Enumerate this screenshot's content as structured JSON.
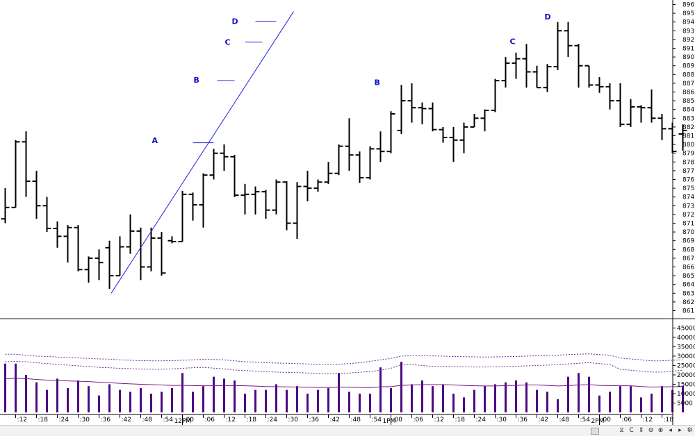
{
  "chart_data": [
    {
      "type": "ohlc",
      "title": "",
      "interval_minutes": 3,
      "ylim": [
        860,
        896.5
      ],
      "y_ticks": [
        861,
        862,
        863,
        864,
        865,
        866,
        867,
        868,
        869,
        870,
        871,
        872,
        873,
        874,
        875,
        876,
        877,
        878,
        879,
        880,
        881,
        882,
        883,
        884,
        885,
        886,
        887,
        888,
        889,
        890,
        891,
        892,
        893,
        894,
        895,
        896
      ],
      "bars": [
        {
          "t": "11:09",
          "o": 871.5,
          "h": 875,
          "l": 871,
          "c": 872.8
        },
        {
          "t": "11:12",
          "o": 872.8,
          "h": 880.5,
          "l": 872.8,
          "c": 880.3
        },
        {
          "t": "11:15",
          "o": 880.3,
          "h": 881.5,
          "l": 874,
          "c": 875.8
        },
        {
          "t": "11:18",
          "o": 875.8,
          "h": 877,
          "l": 871.5,
          "c": 873
        },
        {
          "t": "11:21",
          "o": 873,
          "h": 874,
          "l": 870,
          "c": 870.4
        },
        {
          "t": "11:24",
          "o": 870.4,
          "h": 871.2,
          "l": 868.2,
          "c": 869.5
        },
        {
          "t": "11:27",
          "o": 869.5,
          "h": 870.8,
          "l": 866.5,
          "c": 870.5
        },
        {
          "t": "11:30",
          "o": 870.5,
          "h": 870.8,
          "l": 865.5,
          "c": 865.7
        },
        {
          "t": "11:33",
          "o": 865.7,
          "h": 867.2,
          "l": 864.2,
          "c": 867
        },
        {
          "t": "11:36",
          "o": 867,
          "h": 868,
          "l": 864.5,
          "c": 866.5
        },
        {
          "t": "11:39",
          "o": 868.2,
          "h": 869,
          "l": 863.5,
          "c": 865
        },
        {
          "t": "11:42",
          "o": 865,
          "h": 869.5,
          "l": 865,
          "c": 868.3
        },
        {
          "t": "11:45",
          "o": 868.3,
          "h": 872,
          "l": 867.5,
          "c": 870.1
        },
        {
          "t": "11:48",
          "o": 870.1,
          "h": 870.5,
          "l": 864.5,
          "c": 866
        },
        {
          "t": "11:51",
          "o": 866,
          "h": 870.5,
          "l": 865.5,
          "c": 869.3
        },
        {
          "t": "11:54",
          "o": 869.3,
          "h": 870,
          "l": 865,
          "c": 865.3
        },
        {
          "t": "11:57",
          "o": 869,
          "h": 869.5,
          "l": 868.7,
          "c": 868.9
        },
        {
          "t": "12:00",
          "o": 868.9,
          "h": 874.7,
          "l": 868.9,
          "c": 874.3
        },
        {
          "t": "12:03",
          "o": 874.3,
          "h": 874.5,
          "l": 871.3,
          "c": 873.1
        },
        {
          "t": "12:06",
          "o": 873.1,
          "h": 876.7,
          "l": 870.5,
          "c": 876.5
        },
        {
          "t": "12:09",
          "o": 876.5,
          "h": 879.5,
          "l": 876,
          "c": 879
        },
        {
          "t": "12:12",
          "o": 879,
          "h": 880,
          "l": 877,
          "c": 878.6
        },
        {
          "t": "12:15",
          "o": 878.6,
          "h": 878.8,
          "l": 874,
          "c": 874.2
        },
        {
          "t": "12:18",
          "o": 874.2,
          "h": 875.5,
          "l": 872,
          "c": 874.3
        },
        {
          "t": "12:21",
          "o": 874.3,
          "h": 875.2,
          "l": 872,
          "c": 874.6
        },
        {
          "t": "12:24",
          "o": 874.6,
          "h": 874.8,
          "l": 871.5,
          "c": 872.5
        },
        {
          "t": "12:27",
          "o": 872.5,
          "h": 876,
          "l": 872,
          "c": 875.7
        },
        {
          "t": "12:30",
          "o": 875.7,
          "h": 875.8,
          "l": 870.2,
          "c": 871
        },
        {
          "t": "12:33",
          "o": 871,
          "h": 875.7,
          "l": 869.2,
          "c": 875.2
        },
        {
          "t": "12:36",
          "o": 875.2,
          "h": 877,
          "l": 873.5,
          "c": 875
        },
        {
          "t": "12:39",
          "o": 875,
          "h": 876,
          "l": 874.6,
          "c": 875.7
        },
        {
          "t": "12:42",
          "o": 875.7,
          "h": 878,
          "l": 875.5,
          "c": 876.7
        },
        {
          "t": "12:45",
          "o": 876.7,
          "h": 880,
          "l": 876.5,
          "c": 879.8
        },
        {
          "t": "12:48",
          "o": 879.8,
          "h": 883,
          "l": 877,
          "c": 878.8
        },
        {
          "t": "12:51",
          "o": 878.8,
          "h": 879.2,
          "l": 875.6,
          "c": 876.2
        },
        {
          "t": "12:54",
          "o": 876.2,
          "h": 879.8,
          "l": 876,
          "c": 879.5
        },
        {
          "t": "12:57",
          "o": 879.5,
          "h": 881.5,
          "l": 878,
          "c": 879.2
        },
        {
          "t": "13:00",
          "o": 879.2,
          "h": 883.8,
          "l": 879,
          "c": 883.5
        },
        {
          "t": "13:03",
          "o": 881.6,
          "h": 886.8,
          "l": 881.2,
          "c": 885
        },
        {
          "t": "13:06",
          "o": 885,
          "h": 887,
          "l": 882.5,
          "c": 884.2
        },
        {
          "t": "13:09",
          "o": 884.2,
          "h": 884.8,
          "l": 882.3,
          "c": 884.1
        },
        {
          "t": "13:12",
          "o": 884.1,
          "h": 884.8,
          "l": 881.5,
          "c": 881.7
        },
        {
          "t": "13:15",
          "o": 881.7,
          "h": 882,
          "l": 880.2,
          "c": 880.8
        },
        {
          "t": "13:18",
          "o": 880.8,
          "h": 882,
          "l": 878,
          "c": 880.5
        },
        {
          "t": "13:21",
          "o": 880.5,
          "h": 882.5,
          "l": 879,
          "c": 882
        },
        {
          "t": "13:24",
          "o": 882,
          "h": 883.5,
          "l": 882,
          "c": 883
        },
        {
          "t": "13:27",
          "o": 883,
          "h": 884,
          "l": 881.5,
          "c": 883.9
        },
        {
          "t": "13:30",
          "o": 883.9,
          "h": 887.5,
          "l": 883.7,
          "c": 887.3
        },
        {
          "t": "13:33",
          "o": 887.3,
          "h": 890,
          "l": 886.5,
          "c": 889.3
        },
        {
          "t": "13:36",
          "o": 889.3,
          "h": 890.5,
          "l": 887.5,
          "c": 889.8
        },
        {
          "t": "13:39",
          "o": 889.8,
          "h": 891.5,
          "l": 886.5,
          "c": 888.3
        },
        {
          "t": "13:42",
          "o": 888.3,
          "h": 889,
          "l": 886.5,
          "c": 886.5
        },
        {
          "t": "13:45",
          "o": 886.5,
          "h": 889.2,
          "l": 886,
          "c": 888.9
        },
        {
          "t": "13:48",
          "o": 888.9,
          "h": 894,
          "l": 888.5,
          "c": 893
        },
        {
          "t": "13:51",
          "o": 893,
          "h": 894,
          "l": 890,
          "c": 891.3
        },
        {
          "t": "13:54",
          "o": 891.3,
          "h": 891.5,
          "l": 886.5,
          "c": 889
        },
        {
          "t": "13:57",
          "o": 889,
          "h": 889,
          "l": 886.5,
          "c": 886.8
        },
        {
          "t": "14:00",
          "o": 886.8,
          "h": 887.7,
          "l": 885.9,
          "c": 886.6
        },
        {
          "t": "14:03",
          "o": 886.6,
          "h": 887,
          "l": 884,
          "c": 885
        },
        {
          "t": "14:06",
          "o": 885,
          "h": 887,
          "l": 882,
          "c": 882.3
        },
        {
          "t": "14:09",
          "o": 882.3,
          "h": 885.2,
          "l": 882,
          "c": 884.3
        },
        {
          "t": "14:12",
          "o": 884.3,
          "h": 884.5,
          "l": 882.5,
          "c": 884.2
        },
        {
          "t": "14:15",
          "o": 884.2,
          "h": 886.3,
          "l": 882.5,
          "c": 883
        },
        {
          "t": "14:18",
          "o": 883,
          "h": 883.5,
          "l": 880.5,
          "c": 881.8
        },
        {
          "t": "14:21",
          "o": 881.8,
          "h": 882.5,
          "l": 879,
          "c": 879.2
        },
        {
          "t": "14:24",
          "o": 881.2,
          "h": 882.3,
          "l": 879.3,
          "c": 881.6
        }
      ],
      "pattern_labels": [
        {
          "text": "A",
          "t": "11:52",
          "price": 880.5
        },
        {
          "text": "B",
          "t": "12:04",
          "price": 887.4
        },
        {
          "text": "C",
          "t": "12:13",
          "price": 891.7
        },
        {
          "text": "D",
          "t": "12:15",
          "price": 894.1
        },
        {
          "text": "B",
          "t": "12:56",
          "price": 887.1
        },
        {
          "text": "C",
          "t": "13:35",
          "price": 891.8
        },
        {
          "text": "D",
          "t": "13:45",
          "price": 894.6
        }
      ],
      "trendline": {
        "from": {
          "t": "11:39.5",
          "price": 863
        },
        "to": {
          "t": "12:32",
          "price": 895.2
        }
      },
      "level_marks": [
        {
          "t_from": "12:03",
          "t_to": "12:09",
          "price": 880.2
        },
        {
          "t_from": "12:10",
          "t_to": "12:15",
          "price": 887.3
        },
        {
          "t_from": "12:18",
          "t_to": "12:23",
          "price": 891.7
        },
        {
          "t_from": "12:21",
          "t_to": "12:27",
          "price": 894.1
        }
      ]
    },
    {
      "type": "bar",
      "title": "",
      "ylim": [
        0,
        50000
      ],
      "y_ticks": [
        5000,
        10000,
        15000,
        20000,
        25000,
        30000,
        35000,
        40000,
        45000
      ],
      "volume": [
        26000,
        26000,
        20000,
        16000,
        12000,
        18000,
        13000,
        17000,
        14000,
        9000,
        15000,
        12000,
        11000,
        13000,
        10000,
        11000,
        13000,
        21000,
        11000,
        14000,
        19000,
        18000,
        17000,
        10000,
        12000,
        12000,
        15000,
        12000,
        14000,
        10000,
        12000,
        13000,
        21000,
        11000,
        10000,
        10000,
        24000,
        13000,
        27000,
        15000,
        17000,
        14000,
        15000,
        10000,
        8000,
        12000,
        14000,
        15000,
        16000,
        17000,
        16000,
        12000,
        11000,
        7000,
        19000,
        21000,
        19000,
        9000,
        11000,
        14000,
        14000,
        8000,
        10000,
        14000,
        12000,
        14000
      ],
      "moving_average": [
        18000,
        18200,
        18000,
        17600,
        17200,
        17000,
        16800,
        16600,
        16400,
        16100,
        15800,
        15500,
        15200,
        15000,
        14800,
        14600,
        14400,
        14400,
        14300,
        14200,
        14200,
        14300,
        14300,
        14200,
        14000,
        13800,
        13700,
        13600,
        13500,
        13400,
        13300,
        13300,
        13400,
        13400,
        13300,
        13200,
        13600,
        13800,
        14400,
        14600,
        14800,
        14800,
        14800,
        14600,
        14400,
        14200,
        14100,
        14100,
        14300,
        14400,
        14600,
        14600,
        14400,
        14100,
        14300,
        14600,
        14800,
        14400,
        14300,
        14200,
        14200,
        13800,
        13500,
        13600,
        13700,
        13800
      ],
      "band_upper": [
        31000,
        31000,
        30500,
        30000,
        29800,
        29500,
        29300,
        29000,
        28800,
        28500,
        28400,
        28000,
        27800,
        27600,
        27500,
        27500,
        27600,
        27800,
        28000,
        28300,
        28200,
        28000,
        27500,
        27000,
        26800,
        26500,
        26300,
        26200,
        26000,
        25800,
        25600,
        25500,
        25700,
        26000,
        26500,
        27200,
        28000,
        28800,
        30000,
        30200,
        30200,
        30100,
        30000,
        29800,
        29700,
        29600,
        29500,
        29600,
        29700,
        29800,
        30000,
        30200,
        30500,
        30500,
        30800,
        31000,
        31200,
        30800,
        30500,
        29000,
        28500,
        28000,
        27500,
        27500,
        27800,
        28000
      ],
      "band_lower": [
        27000,
        27200,
        27000,
        26500,
        26000,
        25600,
        25200,
        24800,
        24500,
        24000,
        23800,
        23500,
        23300,
        23100,
        23000,
        23000,
        23200,
        23500,
        23800,
        24000,
        23600,
        23200,
        22600,
        22300,
        22000,
        21700,
        21500,
        21300,
        21200,
        21000,
        20800,
        20600,
        20800,
        21000,
        21400,
        21800,
        22500,
        23500,
        25500,
        25500,
        25000,
        24500,
        24500,
        24400,
        24300,
        24200,
        24200,
        24300,
        24400,
        24600,
        24800,
        25000,
        25200,
        25500,
        25800,
        26200,
        26500,
        26000,
        25500,
        23000,
        22500,
        22000,
        21500,
        21500,
        22000,
        22500
      ]
    }
  ],
  "time_axis": {
    "ticks": [
      {
        "t": "11:12",
        "label": ":12"
      },
      {
        "t": "11:18",
        "label": ":18"
      },
      {
        "t": "11:24",
        "label": ":24"
      },
      {
        "t": "11:30",
        "label": ":30"
      },
      {
        "t": "11:36",
        "label": ":36"
      },
      {
        "t": "11:42",
        "label": ":42"
      },
      {
        "t": "11:48",
        "label": ":48"
      },
      {
        "t": "11:54",
        "label": ":54"
      },
      {
        "t": "12:00",
        "label": ":00"
      },
      {
        "t": "12:06",
        "label": ":06"
      },
      {
        "t": "12:12",
        "label": ":12"
      },
      {
        "t": "12:18",
        "label": ":18"
      },
      {
        "t": "12:24",
        "label": ":24"
      },
      {
        "t": "12:30",
        "label": ":30"
      },
      {
        "t": "12:36",
        "label": ":36"
      },
      {
        "t": "12:42",
        "label": ":42"
      },
      {
        "t": "12:48",
        "label": ":48"
      },
      {
        "t": "12:54",
        "label": ":54"
      },
      {
        "t": "13:00",
        "label": ":00"
      },
      {
        "t": "13:06",
        "label": ":06"
      },
      {
        "t": "13:12",
        "label": ":12"
      },
      {
        "t": "13:18",
        "label": ":18"
      },
      {
        "t": "13:24",
        "label": ":24"
      },
      {
        "t": "13:30",
        "label": ":30"
      },
      {
        "t": "13:36",
        "label": ":36"
      },
      {
        "t": "13:42",
        "label": ":42"
      },
      {
        "t": "13:48",
        "label": ":48"
      },
      {
        "t": "13:54",
        "label": ":54"
      },
      {
        "t": "14:00",
        "label": ":00"
      },
      {
        "t": "14:06",
        "label": ":06"
      },
      {
        "t": "14:12",
        "label": ":12"
      },
      {
        "t": "14:18",
        "label": ":18"
      }
    ],
    "session_labels": [
      {
        "t": "12:00",
        "label": "12PM"
      },
      {
        "t": "13:00",
        "label": "1PM"
      },
      {
        "t": "14:00",
        "label": "2PM"
      }
    ]
  },
  "colors": {
    "bars": "#000000",
    "pattern_labels": "#1010c8",
    "trendline": "#2020e0",
    "volume_bars": "#4b0a82",
    "volume_average": "#7a1a8a",
    "volume_bands": "#6a2a9a",
    "grid": "#c8c8c8"
  },
  "toolbar": {
    "buttons": [
      {
        "name": "zoom-fit-button",
        "glyph": "⧖"
      },
      {
        "name": "reset-button",
        "glyph": "C"
      },
      {
        "name": "vertical-scale-button",
        "glyph": "⇕"
      },
      {
        "name": "zoom-out-button",
        "glyph": "⊖"
      },
      {
        "name": "zoom-in-button",
        "glyph": "⊕"
      },
      {
        "name": "scroll-left-button",
        "glyph": "◂"
      },
      {
        "name": "scroll-right-button",
        "glyph": "▸"
      },
      {
        "name": "settings-button",
        "glyph": "⚙"
      }
    ]
  }
}
